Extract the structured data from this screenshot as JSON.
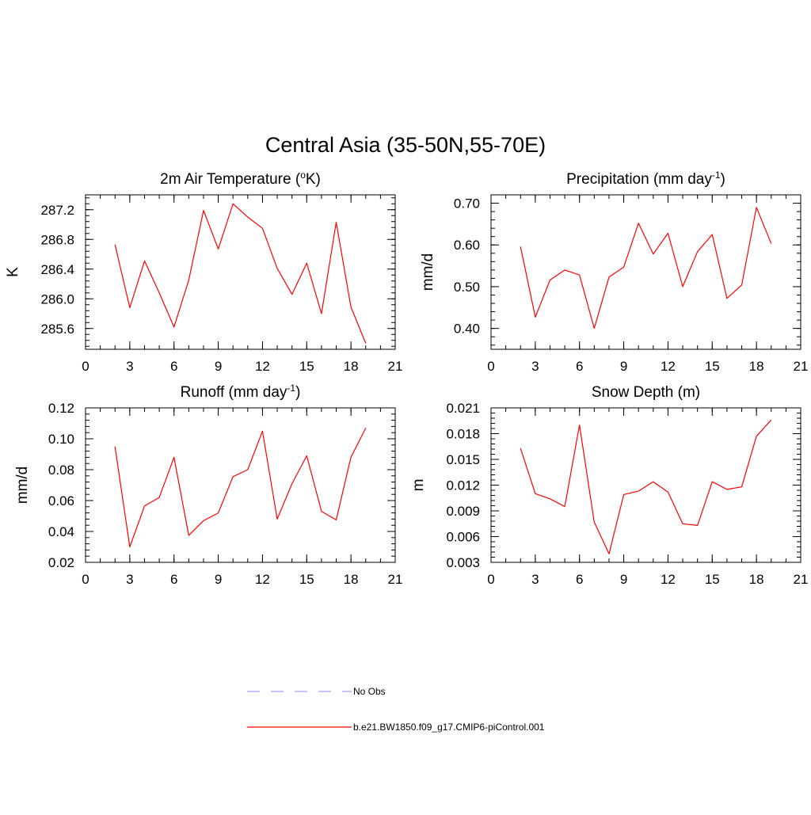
{
  "title": "Central Asia (35-50N,55-70E)",
  "legend": [
    {
      "label": "No Obs",
      "color": "#a0a0ff",
      "dash": true
    },
    {
      "label": "b.e21.BW1850.f09_g17.CMIP6-piControl.001",
      "color": "#ff0000",
      "dash": false
    }
  ],
  "chart_data": [
    {
      "type": "line",
      "title_parts": {
        "pre": "2m Air Temperature (",
        "sup": "o",
        "post": "K)"
      },
      "ylabel": "K",
      "xlim": [
        0,
        21
      ],
      "ylim": [
        285.32,
        287.4
      ],
      "xticks": [
        0,
        3,
        6,
        9,
        12,
        15,
        18,
        21
      ],
      "yticks": [
        285.6,
        286.0,
        286.4,
        286.8,
        287.2
      ],
      "ytick_labels": [
        "285.6",
        "286.0",
        "286.4",
        "286.8",
        "287.2"
      ],
      "grid": false,
      "series": [
        {
          "color": "#ff0000",
          "x": [
            2,
            3,
            4,
            5,
            6,
            7,
            8,
            9,
            10,
            11,
            12,
            13,
            14,
            15,
            16,
            17,
            18,
            19
          ],
          "y": [
            286.73,
            285.88,
            286.51,
            286.08,
            285.62,
            286.25,
            287.19,
            286.67,
            287.28,
            287.1,
            286.95,
            286.41,
            286.06,
            286.48,
            285.8,
            287.03,
            285.89,
            285.4
          ]
        }
      ]
    },
    {
      "type": "line",
      "title_parts": {
        "pre": "Precipitation (mm day",
        "sup": "-1",
        "post": ")"
      },
      "ylabel": "mm/d",
      "xlim": [
        0,
        21
      ],
      "ylim": [
        0.35,
        0.72
      ],
      "xticks": [
        0,
        3,
        6,
        9,
        12,
        15,
        18,
        21
      ],
      "yticks": [
        0.4,
        0.5,
        0.6,
        0.7
      ],
      "ytick_labels": [
        "0.40",
        "0.50",
        "0.60",
        "0.70"
      ],
      "grid": false,
      "series": [
        {
          "color": "#ff0000",
          "x": [
            2,
            3,
            4,
            5,
            6,
            7,
            8,
            9,
            10,
            11,
            12,
            13,
            14,
            15,
            16,
            17,
            18,
            19
          ],
          "y": [
            0.596,
            0.427,
            0.516,
            0.54,
            0.528,
            0.4,
            0.523,
            0.547,
            0.652,
            0.578,
            0.628,
            0.5,
            0.584,
            0.625,
            0.472,
            0.504,
            0.69,
            0.603
          ]
        }
      ]
    },
    {
      "type": "line",
      "title_parts": {
        "pre": "Runoff (mm day",
        "sup": "-1",
        "post": ")"
      },
      "ylabel": "mm/d",
      "xlim": [
        0,
        21
      ],
      "ylim": [
        0.02,
        0.12
      ],
      "xticks": [
        0,
        3,
        6,
        9,
        12,
        15,
        18,
        21
      ],
      "yticks": [
        0.02,
        0.04,
        0.06,
        0.08,
        0.1,
        0.12
      ],
      "ytick_labels": [
        "0.02",
        "0.04",
        "0.06",
        "0.08",
        "0.10",
        "0.12"
      ],
      "grid": false,
      "series": [
        {
          "color": "#ff0000",
          "x": [
            2,
            3,
            4,
            5,
            6,
            7,
            8,
            9,
            10,
            11,
            12,
            13,
            14,
            15,
            16,
            17,
            18,
            19
          ],
          "y": [
            0.095,
            0.03,
            0.0565,
            0.062,
            0.088,
            0.0375,
            0.047,
            0.052,
            0.0755,
            0.08,
            0.105,
            0.048,
            0.071,
            0.089,
            0.053,
            0.0475,
            0.088,
            0.107
          ]
        }
      ]
    },
    {
      "type": "line",
      "title_parts": {
        "pre": "Snow Depth (m)",
        "sup": "",
        "post": ""
      },
      "ylabel": "m",
      "xlim": [
        0,
        21
      ],
      "ylim": [
        0.003,
        0.021
      ],
      "xticks": [
        0,
        3,
        6,
        9,
        12,
        15,
        18,
        21
      ],
      "yticks": [
        0.003,
        0.006,
        0.009,
        0.012,
        0.015,
        0.018,
        0.021
      ],
      "ytick_labels": [
        "0.003",
        "0.006",
        "0.009",
        "0.012",
        "0.015",
        "0.018",
        "0.021"
      ],
      "grid": false,
      "series": [
        {
          "color": "#ff0000",
          "x": [
            2,
            3,
            4,
            5,
            6,
            7,
            8,
            9,
            10,
            11,
            12,
            13,
            14,
            15,
            16,
            17,
            18,
            19
          ],
          "y": [
            0.0163,
            0.011,
            0.0104,
            0.0095,
            0.019,
            0.0077,
            0.004,
            0.0109,
            0.0113,
            0.0124,
            0.0112,
            0.0075,
            0.0073,
            0.0124,
            0.0115,
            0.0118,
            0.0177,
            0.0196
          ]
        }
      ]
    }
  ]
}
